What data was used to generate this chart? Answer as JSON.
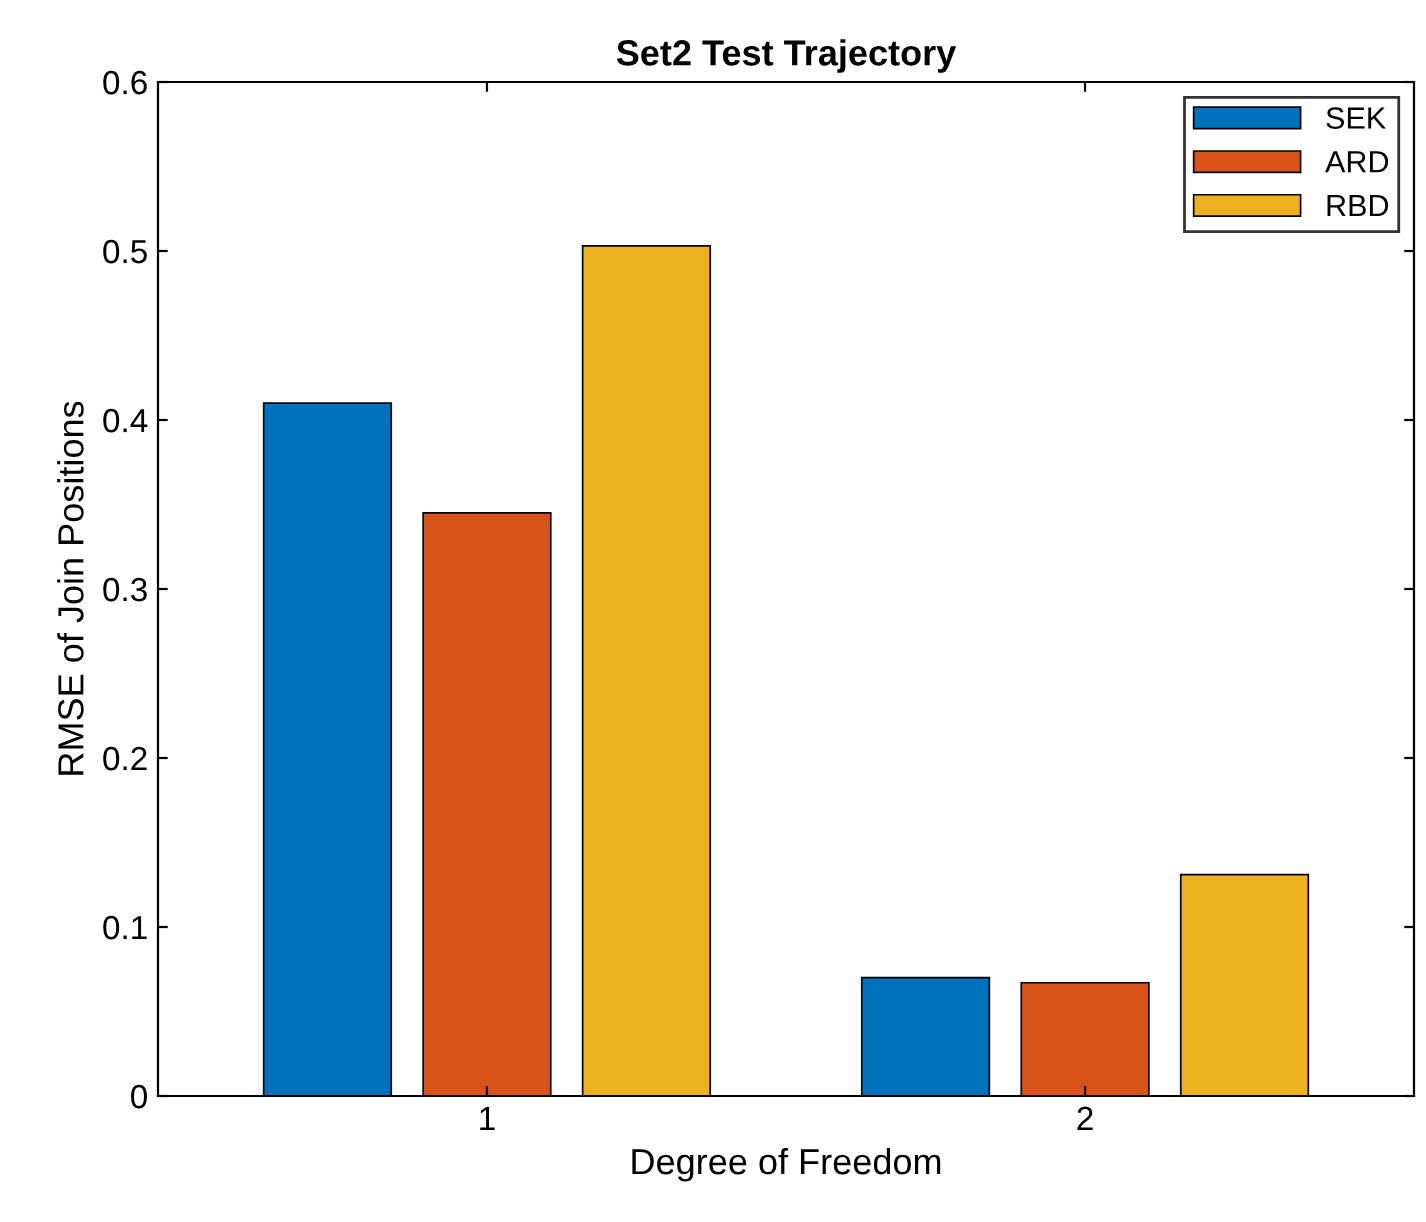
{
  "chart_data": {
    "type": "bar",
    "title": "Set2 Test Trajectory",
    "xlabel": "Degree of Freedom",
    "ylabel": "RMSE of Join Positions",
    "categories": [
      "1",
      "2"
    ],
    "series": [
      {
        "name": "SEK",
        "color": "#0072bd",
        "values": [
          0.41,
          0.07
        ]
      },
      {
        "name": "ARD",
        "color": "#d95319",
        "values": [
          0.345,
          0.067
        ]
      },
      {
        "name": "RBD",
        "color": "#edb120",
        "values": [
          0.503,
          0.131
        ]
      }
    ],
    "ylim": [
      0,
      0.6
    ],
    "yticks": [
      0,
      0.1,
      0.2,
      0.3,
      0.4,
      0.5,
      0.6
    ],
    "grid": false,
    "legend": "top right"
  }
}
